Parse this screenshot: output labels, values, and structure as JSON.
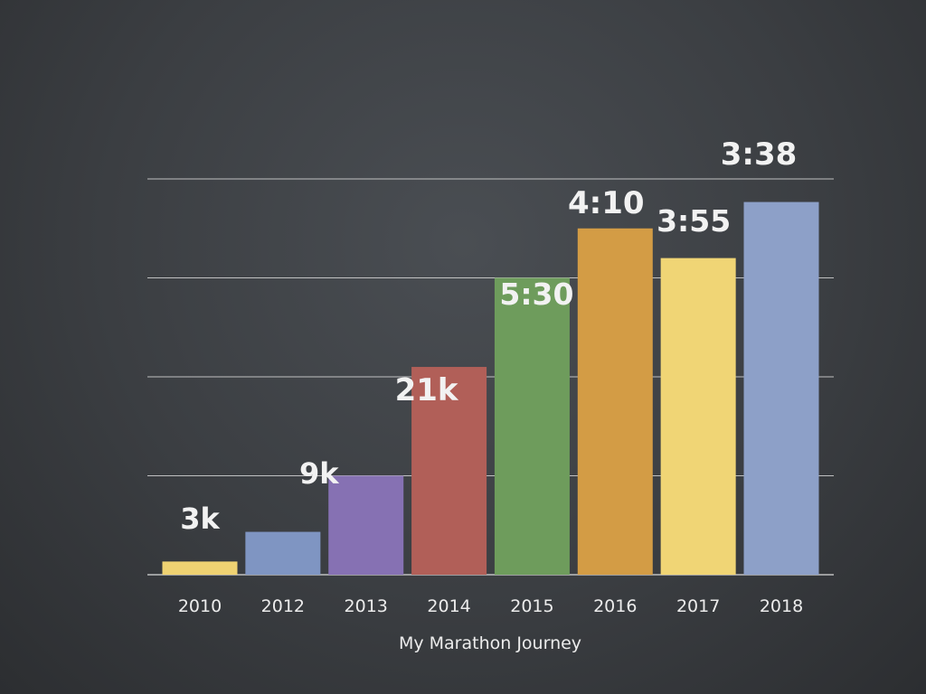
{
  "chart_data": {
    "type": "bar",
    "title": "My Marathon Journey",
    "categories": [
      "2010",
      "2012",
      "2013",
      "2014",
      "2015",
      "2016",
      "2017",
      "2018"
    ],
    "values": [
      0.4,
      1.3,
      3.0,
      6.3,
      9.0,
      10.5,
      9.6,
      11.3
    ],
    "data_labels": [
      "3k",
      "",
      "9k",
      "21k",
      "5:30",
      "4:10",
      "3:55",
      "3:38"
    ],
    "colors": [
      "#efd272",
      "#7f95c2",
      "#8671b3",
      "#b15f58",
      "#6e9c5c",
      "#d39c45",
      "#f0d575",
      "#8da0c8"
    ],
    "ylim": [
      0,
      12
    ],
    "grid": true,
    "xlabel": "",
    "ylabel": ""
  }
}
